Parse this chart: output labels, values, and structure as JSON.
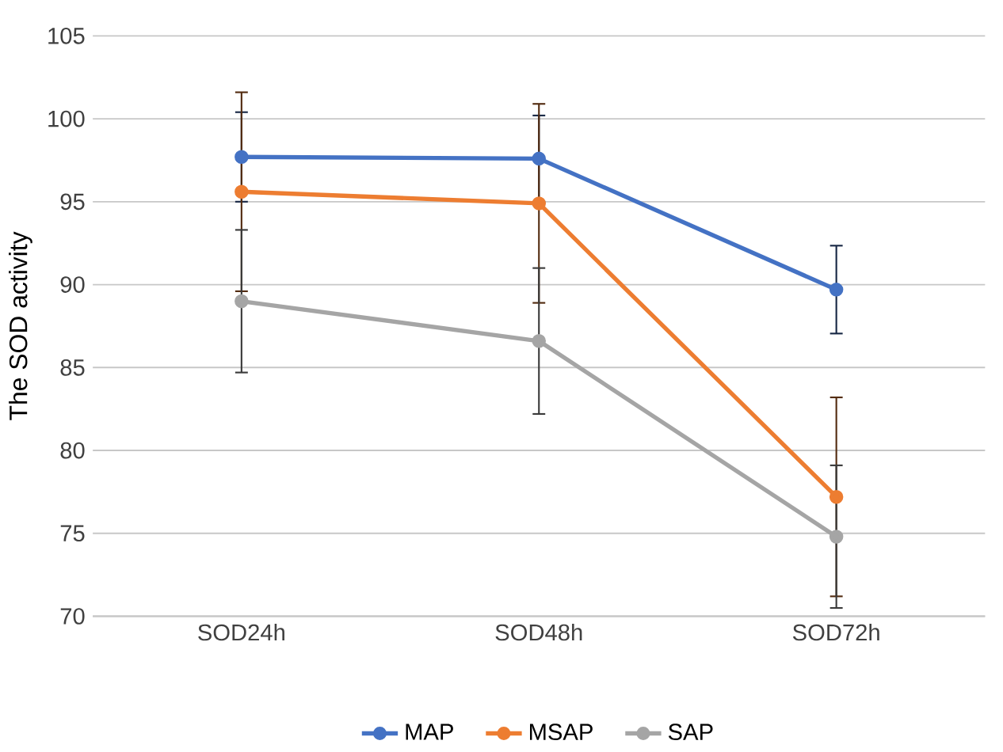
{
  "chart_data": {
    "type": "line",
    "ylabel": "The SOD activity",
    "categories": [
      "SOD24h",
      "SOD48h",
      "SOD72h"
    ],
    "series": [
      {
        "name": "MAP",
        "color": "#4472c4",
        "values": [
          97.7,
          97.6,
          89.7
        ],
        "errors": [
          2.7,
          2.6,
          2.65
        ]
      },
      {
        "name": "MSAP",
        "color": "#ed7d31",
        "values": [
          95.6,
          94.9,
          77.2
        ],
        "errors": [
          6.0,
          6.0,
          6.0
        ]
      },
      {
        "name": "SAP",
        "color": "#a5a5a5",
        "values": [
          89.0,
          86.6,
          74.8
        ],
        "errors": [
          4.3,
          4.4,
          4.3
        ]
      }
    ],
    "ylim": [
      70,
      105
    ],
    "yticks": [
      70,
      75,
      80,
      85,
      90,
      95,
      100,
      105
    ],
    "grid": "y",
    "legend": "bottom",
    "marker": "circle",
    "line_style": "solid"
  }
}
